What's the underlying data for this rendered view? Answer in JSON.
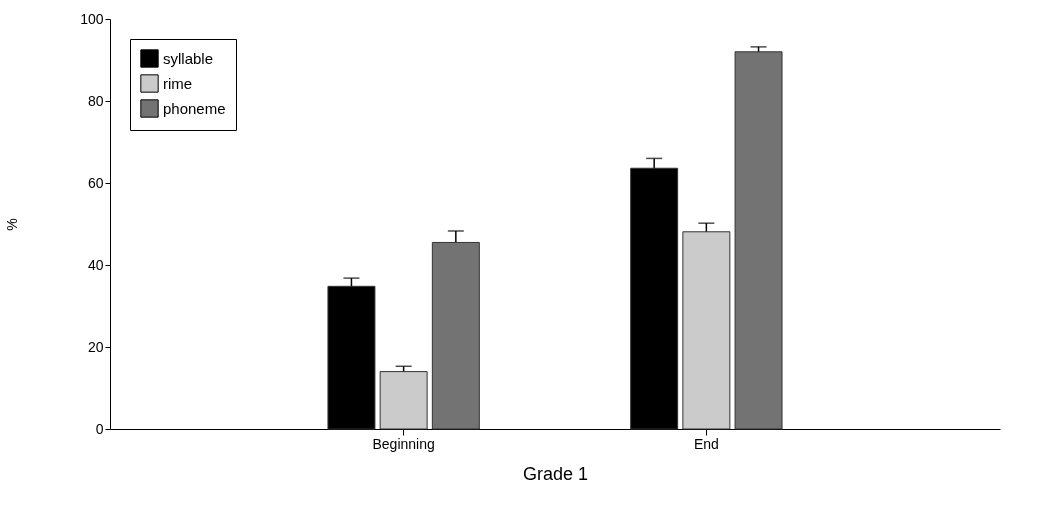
{
  "chart_data": {
    "type": "bar",
    "xlabel": "Grade 1",
    "ylabel": "%",
    "categories": [
      "Beginning",
      "End"
    ],
    "series": [
      {
        "name": "syllable",
        "color": "#000000",
        "values": [
          34.8,
          63.6
        ],
        "errors": [
          2.0,
          2.4
        ]
      },
      {
        "name": "rime",
        "color": "#cbcbcb",
        "values": [
          14.0,
          48.1
        ],
        "errors": [
          1.3,
          2.1
        ]
      },
      {
        "name": "phoneme",
        "color": "#737373",
        "values": [
          45.5,
          92.0
        ],
        "errors": [
          2.8,
          1.2
        ]
      }
    ],
    "ylim": [
      0,
      100
    ],
    "yticks": [
      0,
      20,
      40,
      60,
      80,
      100
    ],
    "grid": false,
    "legend": "top left"
  }
}
